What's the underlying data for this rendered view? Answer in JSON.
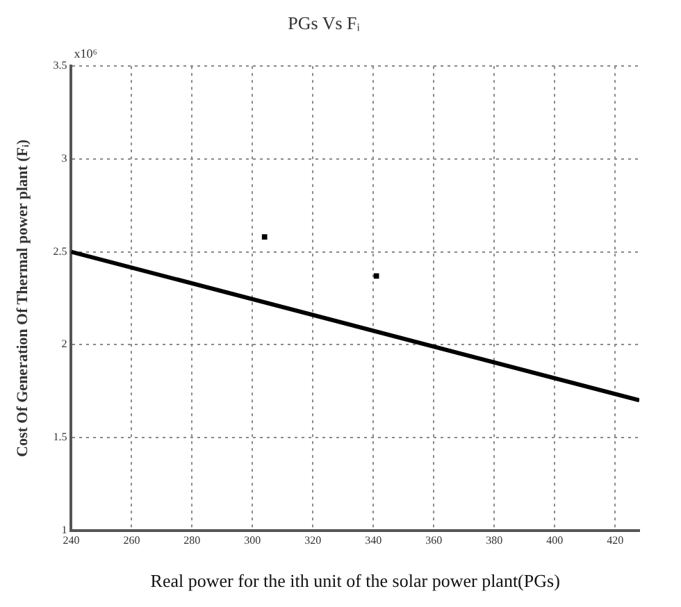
{
  "chart_data": {
    "type": "line",
    "title": "PGs Vs Fᵢ",
    "xlabel": "Real power for the ith unit of the solar power plant(PGs)",
    "ylabel": "Cost Of Generation Of Thermal power plant (Fᵢ)",
    "annotations": [
      "x10⁶"
    ],
    "series": [
      {
        "color": "#000000",
        "marker": "none",
        "x": [
          240,
          428
        ],
        "values": [
          2.5,
          1.7
        ]
      },
      {
        "type": "scatter",
        "color": "#000000",
        "marker": "square",
        "x": [
          304,
          341
        ],
        "values": [
          2.58,
          2.37
        ]
      }
    ],
    "xlim": [
      240,
      428
    ],
    "xticks": [
      240,
      260,
      280,
      300,
      320,
      340,
      360,
      380,
      400,
      420
    ],
    "ylim": [
      1,
      3.5
    ],
    "yticks": [
      1,
      1.5,
      2,
      2.5,
      3,
      3.5
    ],
    "grid": true,
    "line_style": "solid"
  }
}
